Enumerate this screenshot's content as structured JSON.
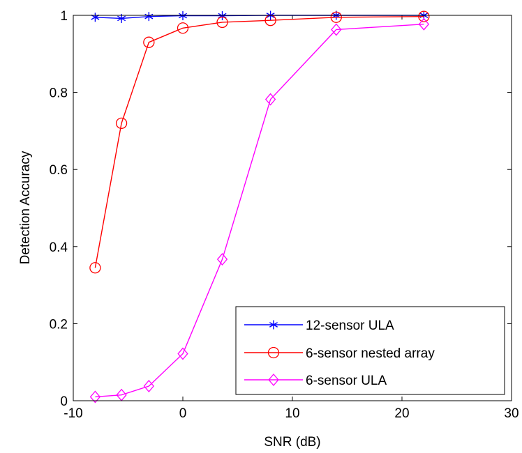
{
  "chart_data": {
    "type": "line",
    "title": "",
    "xlabel": "SNR (dB)",
    "ylabel": "Detection Accuracy",
    "xlim": [
      -10,
      30
    ],
    "ylim": [
      0,
      1
    ],
    "xticks": [
      -10,
      0,
      10,
      20,
      30
    ],
    "yticks": [
      0,
      0.2,
      0.4,
      0.6,
      0.8,
      1
    ],
    "xtick_labels": [
      "-10",
      "0",
      "10",
      "20",
      "30"
    ],
    "ytick_labels": [
      "0",
      "0.2",
      "0.4",
      "0.6",
      "0.8",
      "1"
    ],
    "grid": false,
    "legend_position": "bottom-right",
    "series": [
      {
        "name": "12-sensor ULA",
        "marker": "asterisk",
        "color": "#0000ff",
        "x": [
          -8,
          -5.6,
          -3.1,
          0,
          3.6,
          8,
          14,
          22
        ],
        "y": [
          0.995,
          0.992,
          0.997,
          0.999,
          0.999,
          1.0,
          1.0,
          1.0
        ]
      },
      {
        "name": "6-sensor nested array",
        "marker": "circle",
        "color": "#ff0000",
        "x": [
          -8,
          -5.6,
          -3.1,
          0,
          3.6,
          8,
          14,
          22
        ],
        "y": [
          0.345,
          0.72,
          0.93,
          0.967,
          0.982,
          0.987,
          0.995,
          0.997
        ]
      },
      {
        "name": "6-sensor ULA",
        "marker": "diamond",
        "color": "#ff00ff",
        "x": [
          -8,
          -5.6,
          -3.1,
          0,
          3.6,
          8,
          14,
          22
        ],
        "y": [
          0.01,
          0.015,
          0.038,
          0.122,
          0.367,
          0.782,
          0.963,
          0.977
        ]
      }
    ]
  }
}
